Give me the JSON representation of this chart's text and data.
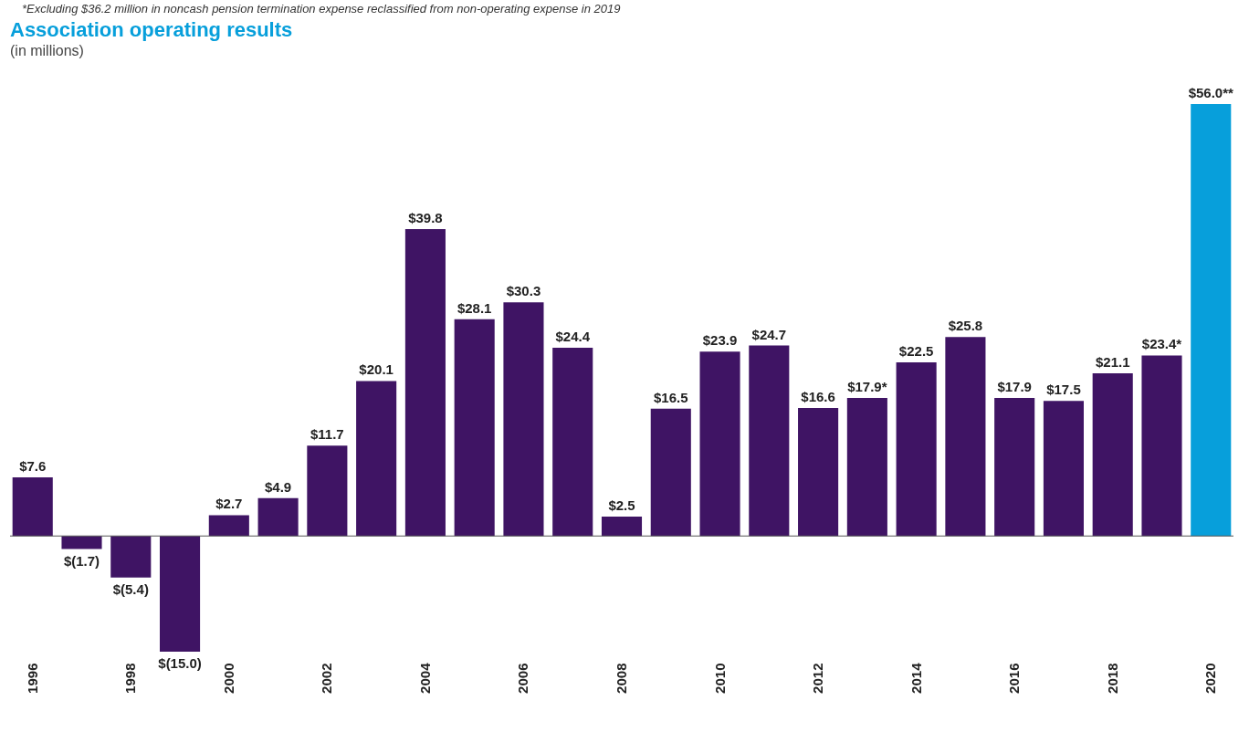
{
  "chart_data": {
    "type": "bar",
    "title": "Association operating results",
    "subtitle": "(in millions)",
    "annotations": [
      "*Excluding $36.2 million in noncash pension termination expense reclassified from non-operating expense in 2019"
    ],
    "categories": [
      "1996",
      null,
      "1998",
      null,
      "2000",
      null,
      "2002",
      null,
      "2004",
      null,
      "2006",
      null,
      "2008",
      null,
      "2010",
      null,
      "2012",
      null,
      "2014",
      null,
      "2016",
      null,
      "2018",
      null,
      "2020"
    ],
    "values": [
      7.6,
      -1.7,
      -5.4,
      -15.0,
      2.7,
      4.9,
      11.7,
      20.1,
      39.8,
      28.1,
      30.3,
      24.4,
      2.5,
      16.5,
      23.9,
      24.7,
      16.6,
      17.9,
      22.5,
      25.8,
      17.9,
      17.5,
      21.1,
      23.4,
      56.0
    ],
    "value_labels": [
      "$7.6",
      "$(1.7)",
      "$(5.4)",
      "$(15.0)",
      "$2.7",
      "$4.9",
      "$11.7",
      "$20.1",
      "$39.8",
      "$28.1",
      "$30.3",
      "$24.4",
      "$2.5",
      "$16.5",
      "$23.9",
      "$24.7",
      "$16.6",
      "$17.9*",
      "$22.5",
      "$25.8",
      "$17.9",
      "$17.5",
      "$21.1",
      "$23.4*",
      "$56.0**"
    ],
    "colors": [
      "#3f1464",
      "#3f1464",
      "#3f1464",
      "#3f1464",
      "#3f1464",
      "#3f1464",
      "#3f1464",
      "#3f1464",
      "#3f1464",
      "#3f1464",
      "#3f1464",
      "#3f1464",
      "#3f1464",
      "#3f1464",
      "#3f1464",
      "#3f1464",
      "#3f1464",
      "#3f1464",
      "#3f1464",
      "#3f1464",
      "#3f1464",
      "#3f1464",
      "#3f1464",
      "#3f1464",
      "#079fdb"
    ]
  }
}
